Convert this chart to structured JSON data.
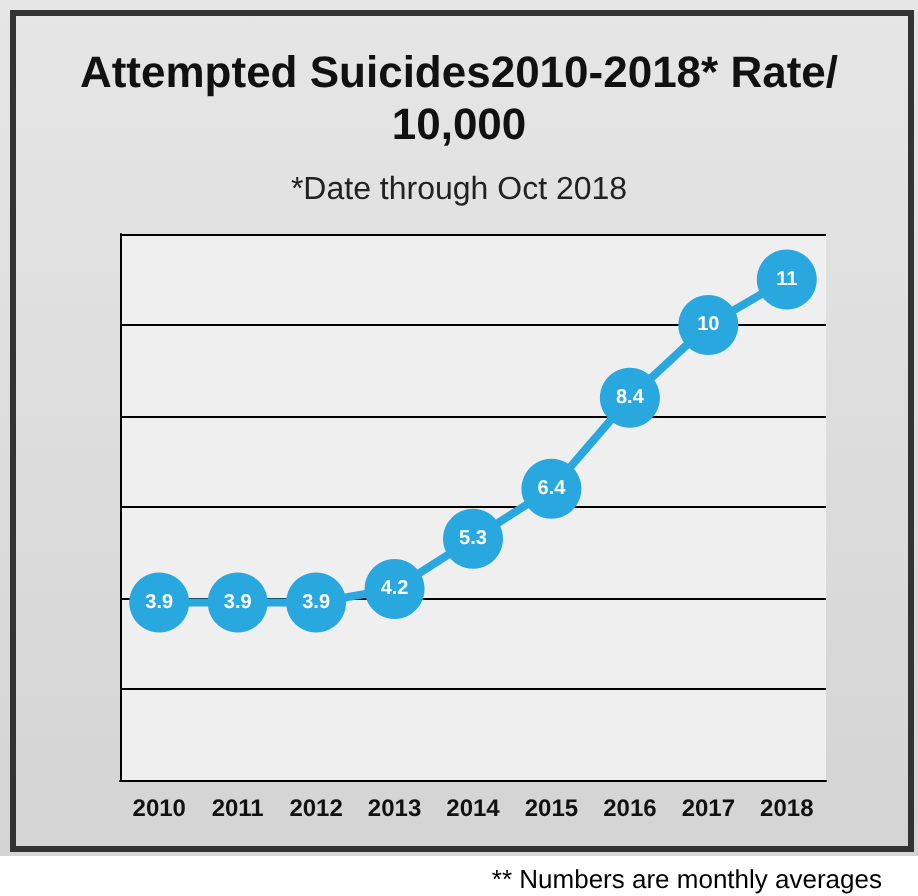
{
  "chart_data": {
    "type": "line",
    "title": "Attempted Suicides2010-2018* Rate/10,000",
    "subtitle": "*Date through Oct 2018",
    "annotations": [
      "** Numbers are monthly averages"
    ],
    "categories": [
      "2010",
      "2011",
      "2012",
      "2013",
      "2014",
      "2015",
      "2016",
      "2017",
      "2018"
    ],
    "series": [
      {
        "color": "#29a8e0",
        "values": [
          3.9,
          3.9,
          3.9,
          4.2,
          5.3,
          6.4,
          8.4,
          10,
          11
        ]
      }
    ],
    "ylim": [
      0,
      12
    ],
    "yticks": [
      {
        "value": 0,
        "label": null
      },
      {
        "value": 2,
        "label": null
      },
      {
        "value": 4,
        "label": null
      },
      {
        "value": 6,
        "label": null
      },
      {
        "value": 8,
        "label": null
      },
      {
        "value": 10,
        "label": null
      },
      {
        "value": 12,
        "label": null
      }
    ],
    "tick_labels": "x",
    "grid": "y",
    "data_labels": true,
    "marker": "circle",
    "line_style": "solid",
    "relative": false
  }
}
